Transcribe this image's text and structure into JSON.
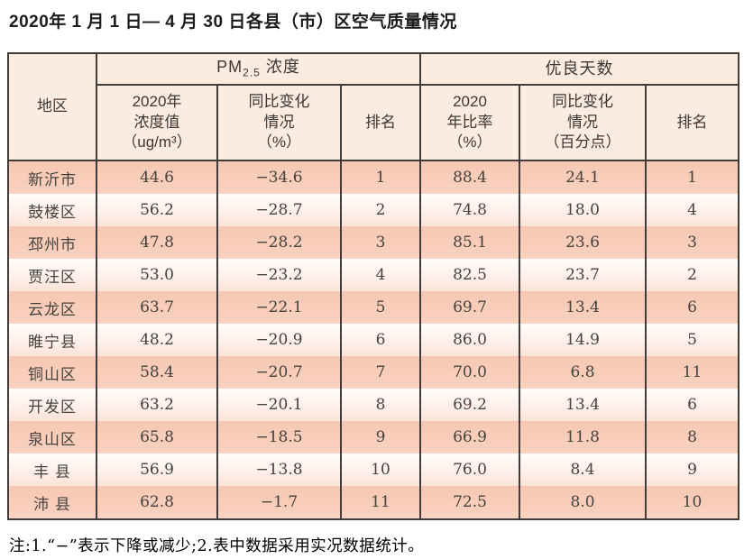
{
  "title": "2020年 1 月 1 日— 4 月 30 日各县（市）区空气质量情况",
  "table": {
    "header": {
      "region": "地区",
      "pm_group": {
        "prefix": "PM",
        "sub": "2.5",
        "suffix": "浓度"
      },
      "good_group": "优良天数",
      "pm_value": "2020年\n浓度值\n（ug/m³）",
      "pm_change": "同比变化\n情况\n（%）",
      "pm_rank": "排名",
      "good_rate": "2020\n年比率\n（%）",
      "good_change": "同比变化\n情况\n（百分点）",
      "good_rank": "排名"
    },
    "rows": [
      {
        "region": "新沂市",
        "pm_value": "44.6",
        "pm_change": "−34.6",
        "pm_rank": "1",
        "good_rate": "88.4",
        "good_change": "24.1",
        "good_rank": "1"
      },
      {
        "region": "鼓楼区",
        "pm_value": "56.2",
        "pm_change": "−28.7",
        "pm_rank": "2",
        "good_rate": "74.8",
        "good_change": "18.0",
        "good_rank": "4"
      },
      {
        "region": "邳州市",
        "pm_value": "47.8",
        "pm_change": "−28.2",
        "pm_rank": "3",
        "good_rate": "85.1",
        "good_change": "23.6",
        "good_rank": "3"
      },
      {
        "region": "贾汪区",
        "pm_value": "53.0",
        "pm_change": "−23.2",
        "pm_rank": "4",
        "good_rate": "82.5",
        "good_change": "23.7",
        "good_rank": "2"
      },
      {
        "region": "云龙区",
        "pm_value": "63.7",
        "pm_change": "−22.1",
        "pm_rank": "5",
        "good_rate": "69.7",
        "good_change": "13.4",
        "good_rank": "6"
      },
      {
        "region": "睢宁县",
        "pm_value": "48.2",
        "pm_change": "−20.9",
        "pm_rank": "6",
        "good_rate": "86.0",
        "good_change": "14.9",
        "good_rank": "5"
      },
      {
        "region": "铜山区",
        "pm_value": "58.4",
        "pm_change": "−20.7",
        "pm_rank": "7",
        "good_rate": "70.0",
        "good_change": "6.8",
        "good_rank": "11"
      },
      {
        "region": "开发区",
        "pm_value": "63.2",
        "pm_change": "−20.1",
        "pm_rank": "8",
        "good_rate": "69.2",
        "good_change": "13.4",
        "good_rank": "6"
      },
      {
        "region": "泉山区",
        "pm_value": "65.8",
        "pm_change": "−18.5",
        "pm_rank": "9",
        "good_rate": "66.9",
        "good_change": "11.8",
        "good_rank": "8"
      },
      {
        "region": "丰 县",
        "pm_value": "56.9",
        "pm_change": "−13.8",
        "pm_rank": "10",
        "good_rate": "76.0",
        "good_change": "8.4",
        "good_rank": "9"
      },
      {
        "region": "沛 县",
        "pm_value": "62.8",
        "pm_change": "−1.7",
        "pm_rank": "11",
        "good_rate": "72.5",
        "good_change": "8.0",
        "good_rank": "10"
      }
    ]
  },
  "note": "注:1.“−”表示下降或减少;2.表中数据采用实况数据统计。",
  "colors": {
    "row_dark": "#f7cab6",
    "row_light": "#fdf1ea",
    "header_bg": "#fcebdf",
    "border": "#3f3c3a"
  }
}
